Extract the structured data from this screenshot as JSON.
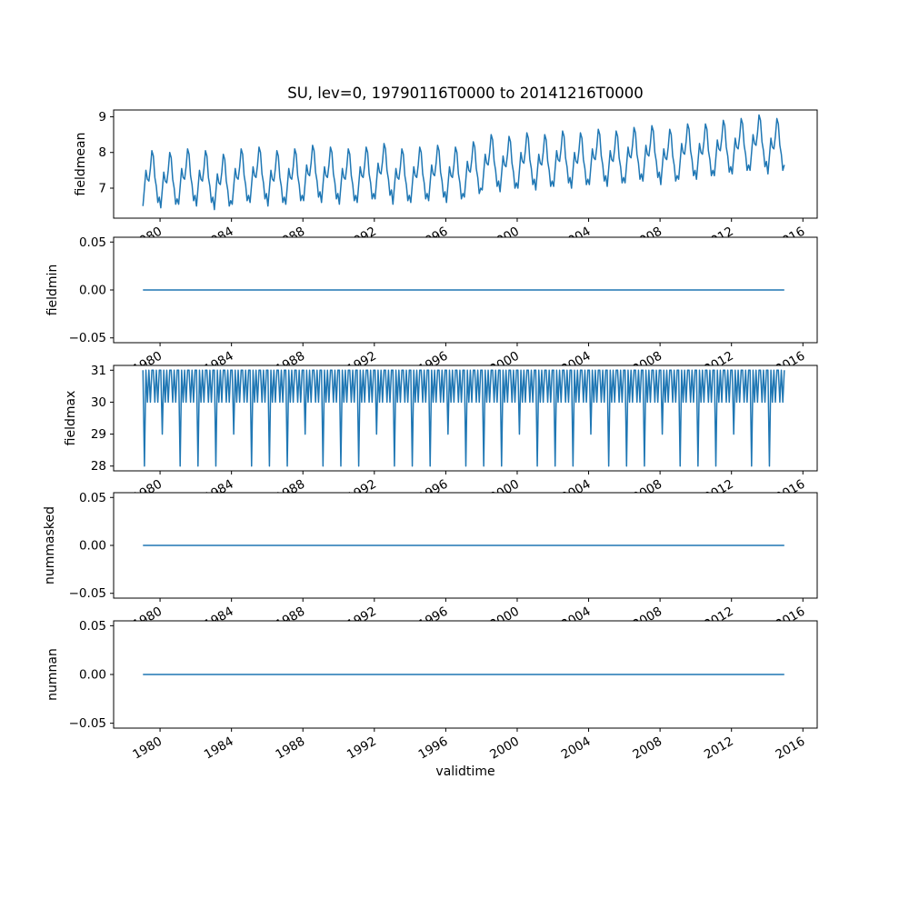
{
  "figure": {
    "title": "SU, lev=0, 19790116T0000 to 20141216T0000",
    "xlabel": "validtime",
    "line_color": "#1f77b4",
    "background_color": "#ffffff",
    "text_color": "#000000"
  },
  "xaxis": {
    "lim": [
      1977.4,
      2016.8
    ],
    "tick_values": [
      1980,
      1984,
      1988,
      1992,
      1996,
      2000,
      2004,
      2008,
      2012,
      2016
    ],
    "tick_labels": [
      "1980",
      "1984",
      "1988",
      "1992",
      "1996",
      "2000",
      "2004",
      "2008",
      "2012",
      "2016"
    ]
  },
  "chart_data": [
    {
      "type": "line",
      "name": "fieldmean",
      "ylabel": "fieldmean",
      "ytick_values": [
        7,
        8,
        9
      ],
      "ytick_labels": [
        "7",
        "8",
        "9"
      ],
      "ylim": [
        6.16,
        9.19
      ],
      "x_months": {
        "start_year": 1979,
        "years": 36,
        "month_phase": 0.5
      },
      "monthly_climatology": [
        6.5,
        7.0,
        7.5,
        7.25,
        7.2,
        7.55,
        8.05,
        7.9,
        7.3,
        7.05,
        6.6,
        6.75
      ],
      "year_offsets": [
        0,
        -0.05,
        0.05,
        0,
        -0.1,
        0.05,
        0.1,
        0,
        0.05,
        0.15,
        0.1,
        0.05,
        0.1,
        0.2,
        0.05,
        0.1,
        0.15,
        0.1,
        0.25,
        0.45,
        0.4,
        0.5,
        0.45,
        0.55,
        0.5,
        0.6,
        0.55,
        0.65,
        0.7,
        0.6,
        0.75,
        0.75,
        0.85,
        0.9,
        1.0,
        0.9
      ]
    },
    {
      "type": "line",
      "name": "fieldmin",
      "ylabel": "fieldmin",
      "ytick_values": [
        -0.05,
        0.0,
        0.05
      ],
      "ytick_labels": [
        "−0.05",
        "0.00",
        "0.05"
      ],
      "ylim": [
        -0.055,
        0.055
      ],
      "constant_value": 0.0,
      "x_span": [
        1979.042,
        2014.958
      ]
    },
    {
      "type": "line",
      "name": "fieldmax",
      "ylabel": "fieldmax",
      "ytick_values": [
        28,
        29,
        30,
        31
      ],
      "ytick_labels": [
        "28",
        "29",
        "30",
        "31"
      ],
      "ylim": [
        27.85,
        31.15
      ],
      "x_months": {
        "start_year": 1979,
        "years": 36,
        "month_phase": 0.5
      },
      "month_day_counts": [
        31,
        28,
        31,
        30,
        31,
        30,
        31,
        31,
        30,
        31,
        30,
        31
      ],
      "leap_years": [
        1980,
        1984,
        1988,
        1992,
        1996,
        2000,
        2004,
        2008,
        2012
      ],
      "leap_february_value": 29
    },
    {
      "type": "line",
      "name": "nummasked",
      "ylabel": "nummasked",
      "ytick_values": [
        -0.05,
        0.0,
        0.05
      ],
      "ytick_labels": [
        "−0.05",
        "0.00",
        "0.05"
      ],
      "ylim": [
        -0.055,
        0.055
      ],
      "constant_value": 0.0,
      "x_span": [
        1979.042,
        2014.958
      ]
    },
    {
      "type": "line",
      "name": "numnan",
      "ylabel": "numnan",
      "ytick_values": [
        -0.05,
        0.0,
        0.05
      ],
      "ytick_labels": [
        "−0.05",
        "0.00",
        "0.05"
      ],
      "ylim": [
        -0.055,
        0.055
      ],
      "constant_value": 0.0,
      "x_span": [
        1979.042,
        2014.958
      ]
    }
  ]
}
